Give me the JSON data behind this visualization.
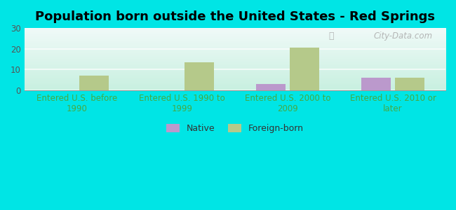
{
  "title": "Population born outside the United States - Red Springs",
  "categories": [
    "Entered U.S. before\n1990",
    "Entered U.S. 1990 to\n1999",
    "Entered U.S. 2000 to\n2009",
    "Entered U.S. 2010 or\nlater"
  ],
  "native_values": [
    0,
    0,
    3,
    6
  ],
  "foreign_values": [
    7,
    13.5,
    20.5,
    6
  ],
  "native_color": "#bb99cc",
  "foreign_color": "#b5c98a",
  "ylim": [
    0,
    30
  ],
  "yticks": [
    0,
    10,
    20,
    30
  ],
  "background_color": "#00e5e5",
  "bar_width": 0.28,
  "xlabel_color": "#44aa44",
  "title_fontsize": 13,
  "tick_fontsize": 8.5,
  "legend_native": "Native",
  "legend_foreign": "Foreign-born",
  "watermark": "City-Data.com",
  "grid_color": "#dddddd",
  "plot_bg_top": "#f0faf8",
  "plot_bg_bottom": "#c8f0e0"
}
